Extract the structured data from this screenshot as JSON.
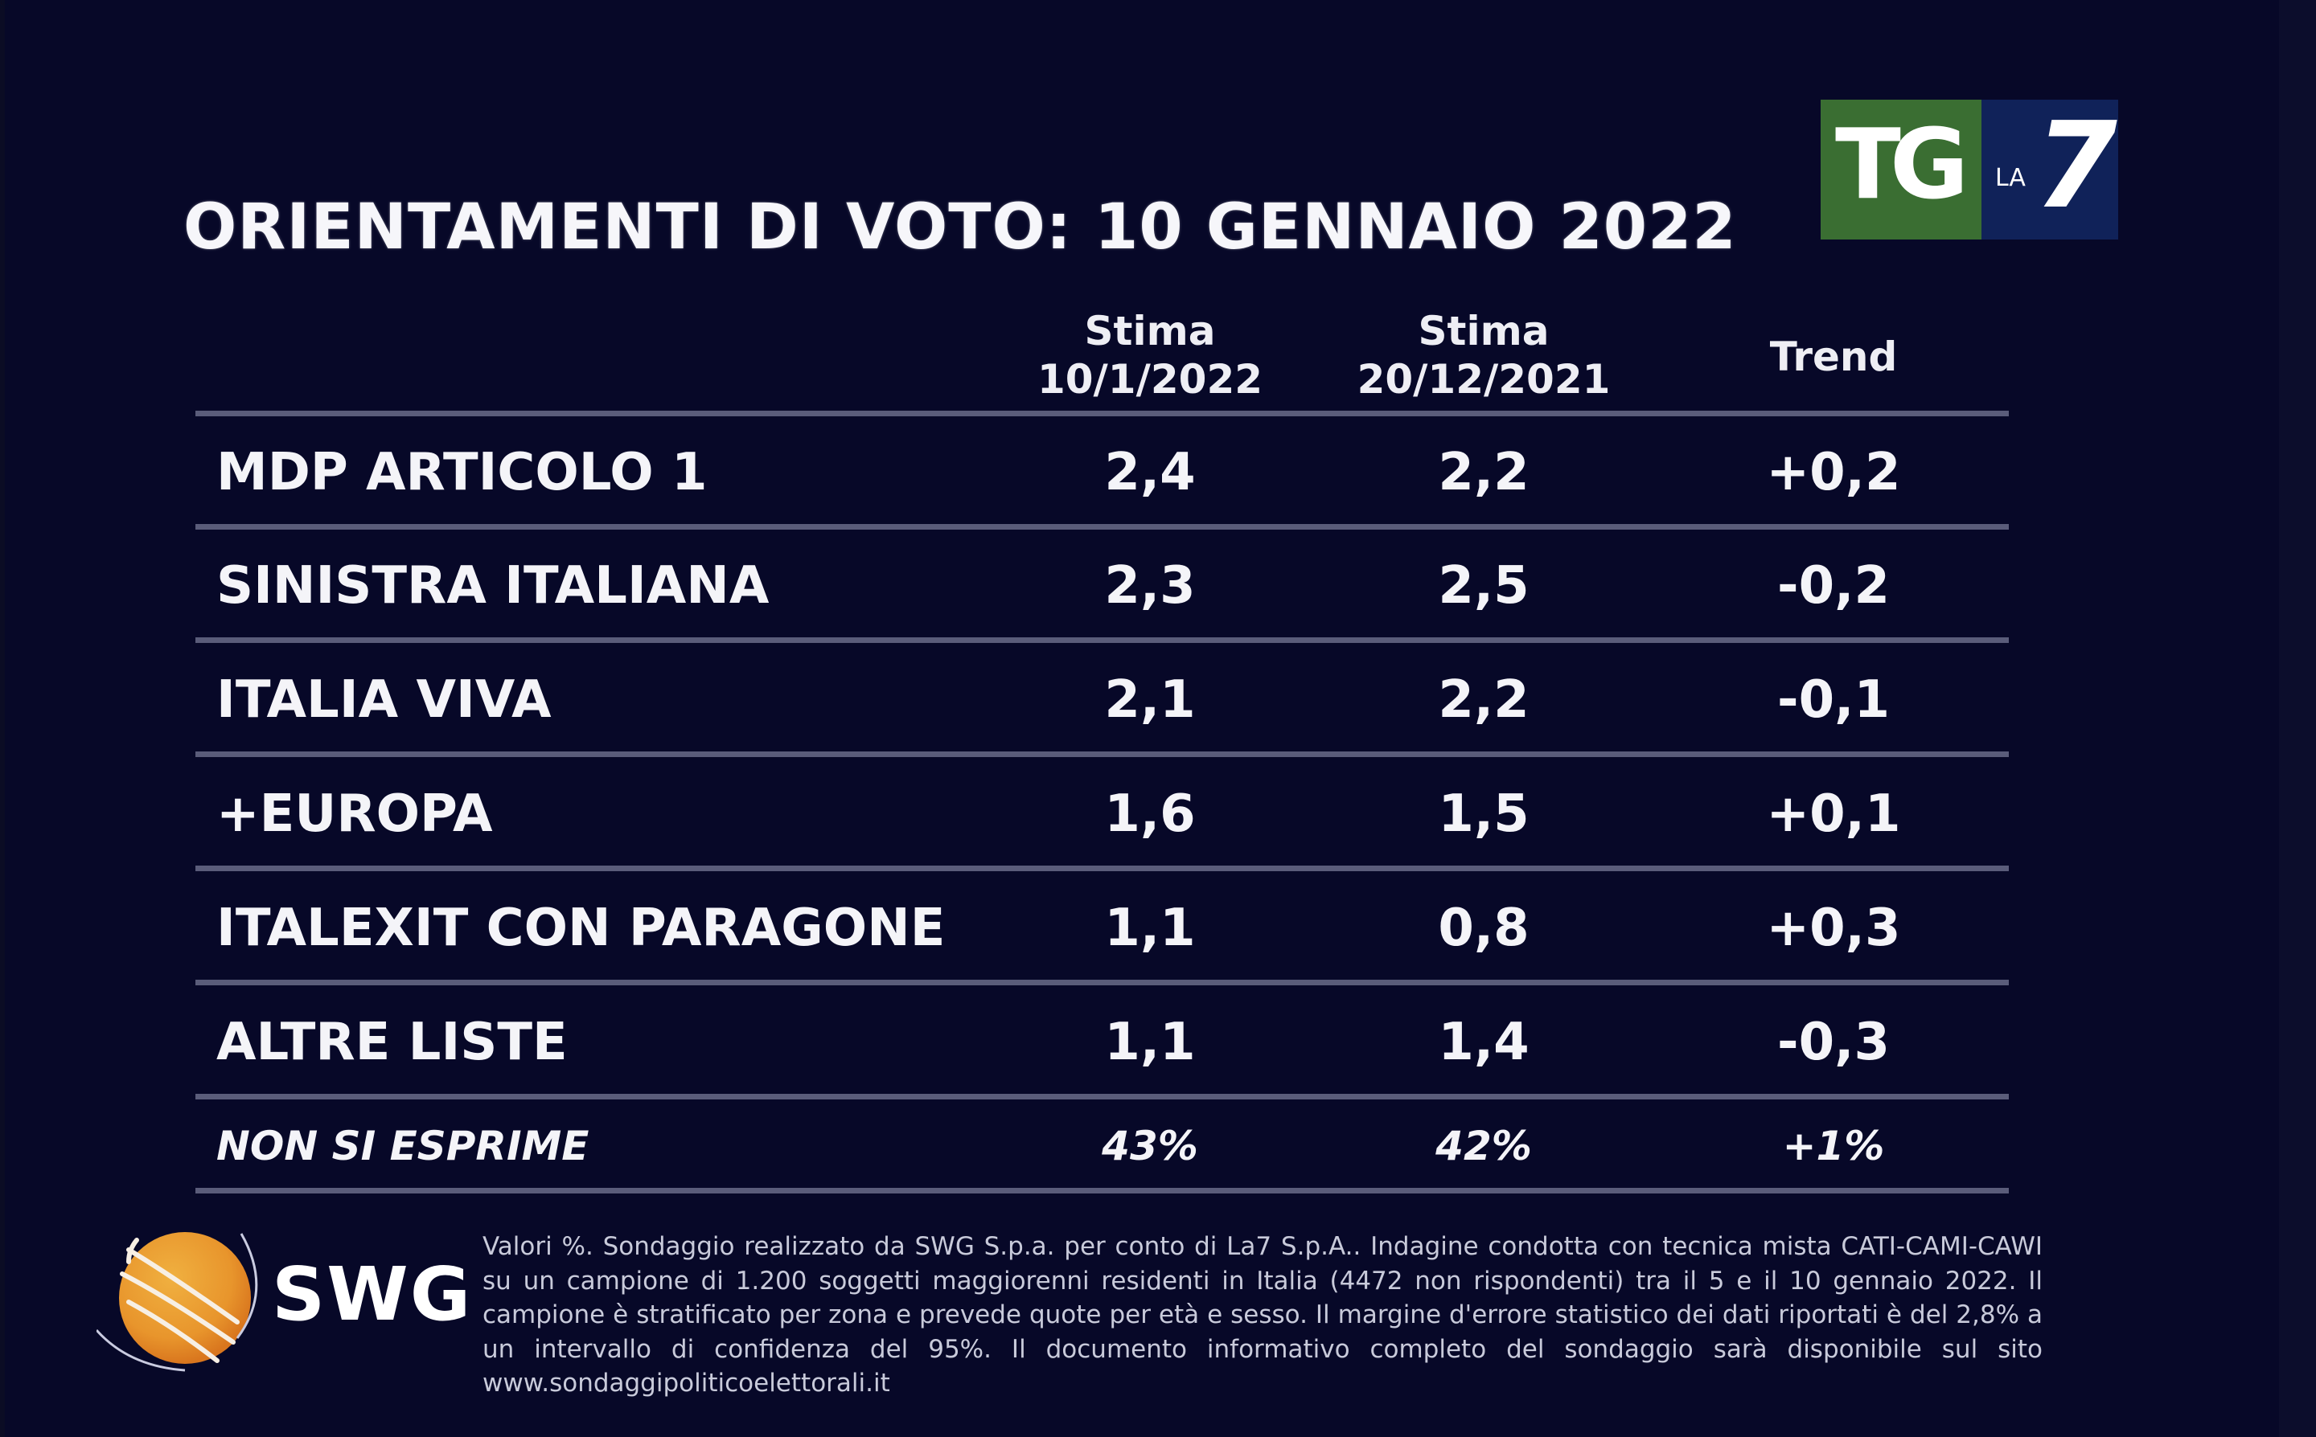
{
  "title": "ORIENTAMENTI DI VOTO: 10 GENNAIO 2022",
  "broadcaster_logo": {
    "text_main": "TG",
    "text_small": "LA",
    "text_number": "7",
    "colors": {
      "green": "#3a6e32",
      "blue": "#102259"
    }
  },
  "pollster_logo": {
    "text": "SWG",
    "colors": {
      "globe": "#e79a2e",
      "rings": "#ffffff"
    }
  },
  "columns": {
    "current": {
      "line1": "Stima",
      "line2": "10/1/2022"
    },
    "previous": {
      "line1": "Stima",
      "line2": "20/12/2021"
    },
    "trend": {
      "label": "Trend"
    }
  },
  "rows": [
    {
      "party": "MDP ARTICOLO 1",
      "current": "2,4",
      "previous": "2,2",
      "trend": "+0,2"
    },
    {
      "party": "SINISTRA ITALIANA",
      "current": "2,3",
      "previous": "2,5",
      "trend": "-0,2"
    },
    {
      "party": "ITALIA VIVA",
      "current": "2,1",
      "previous": "2,2",
      "trend": "-0,1"
    },
    {
      "party": "+EUROPA",
      "current": "1,6",
      "previous": "1,5",
      "trend": "+0,1"
    },
    {
      "party": "ITALEXIT CON PARAGONE",
      "current": "1,1",
      "previous": "0,8",
      "trend": "+0,3"
    },
    {
      "party": "ALTRE LISTE",
      "current": "1,1",
      "previous": "1,4",
      "trend": "-0,3"
    }
  ],
  "non_expressed": {
    "label": "NON SI ESPRIME",
    "current": "43%",
    "previous": "42%",
    "trend": "+1%"
  },
  "footnote": "Valori %. Sondaggio realizzato da SWG S.p.a. per conto di La7 S.p.A.. Indagine condotta con tecnica mista CATI-CAMI-CAWI su un campione di 1.200 soggetti maggiorenni residenti in Italia (4472 non rispondenti) tra il 5 e il 10 gennaio 2022. Il campione è stratificato per zona e prevede quote per età e sesso. Il margine d'errore statistico dei dati riportati è del 2,8% a un intervallo di confidenza del 95%. Il documento informativo completo del sondaggio sarà disponibile sul sito www.sondaggipoliticoelettorali.it",
  "colors": {
    "background": "#070828",
    "rule": "#5a5c7a",
    "text": "#f4f4f8"
  },
  "chart_data": {
    "type": "table",
    "title": "ORIENTAMENTI DI VOTO: 10 GENNAIO 2022",
    "columns": [
      "Stima 10/1/2022",
      "Stima 20/12/2021",
      "Trend"
    ],
    "categories": [
      "MDP ARTICOLO 1",
      "SINISTRA ITALIANA",
      "ITALIA VIVA",
      "+EUROPA",
      "ITALEXIT CON PARAGONE",
      "ALTRE LISTE",
      "NON SI ESPRIME"
    ],
    "series": [
      {
        "name": "Stima 10/1/2022",
        "values": [
          2.4,
          2.3,
          2.1,
          1.6,
          1.1,
          1.1,
          43
        ]
      },
      {
        "name": "Stima 20/12/2021",
        "values": [
          2.2,
          2.5,
          2.2,
          1.5,
          0.8,
          1.4,
          42
        ]
      },
      {
        "name": "Trend",
        "values": [
          0.2,
          -0.2,
          -0.1,
          0.1,
          0.3,
          -0.3,
          1
        ]
      }
    ],
    "units": "%"
  }
}
